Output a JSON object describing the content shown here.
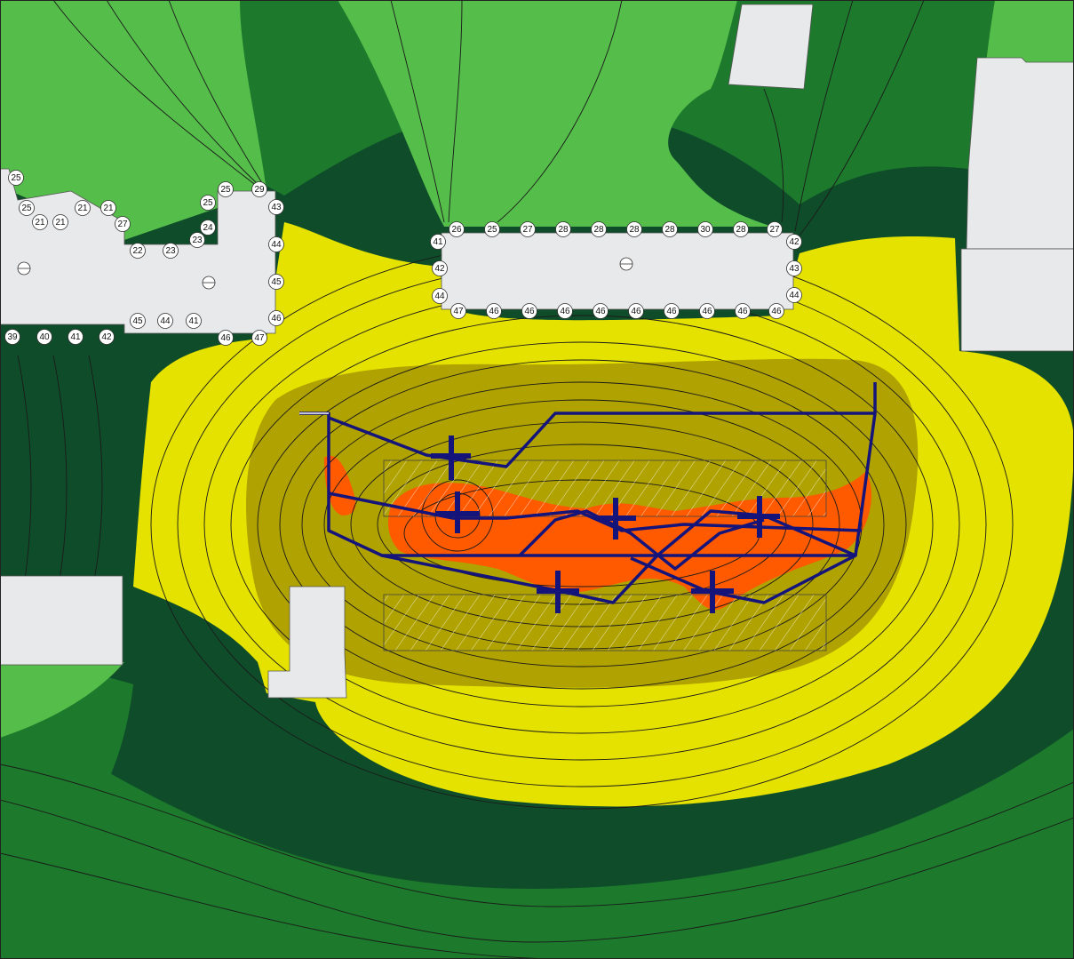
{
  "colors": {
    "green_light": "#55bd4a",
    "green_mid": "#1d7a2c",
    "green_dark": "#0f4d2a",
    "yellow": "#e5e200",
    "olive": "#b0a200",
    "orange": "#ff5a00",
    "building": "#e8e9eb",
    "route": "#14147a"
  },
  "building_labels": {
    "left": [
      "25",
      "25",
      "21",
      "21",
      "21",
      "21",
      "27",
      "22",
      "23",
      "23",
      "24",
      "25",
      "25",
      "29",
      "43",
      "44",
      "45",
      "46",
      "47",
      "46",
      "41",
      "44",
      "45",
      "42",
      "41",
      "40",
      "39"
    ],
    "center_top": [
      "26",
      "25",
      "27",
      "28",
      "28",
      "28",
      "28",
      "30",
      "28",
      "27"
    ],
    "center_left": [
      "41",
      "42",
      "44"
    ],
    "center_right": [
      "42",
      "43",
      "44"
    ],
    "center_bottom": [
      "47",
      "46",
      "46",
      "46",
      "46",
      "46",
      "46",
      "46",
      "46",
      "46"
    ]
  },
  "source_markers": [
    "plus-1",
    "plus-2",
    "plus-3",
    "plus-4",
    "plus-5",
    "plus-6"
  ]
}
